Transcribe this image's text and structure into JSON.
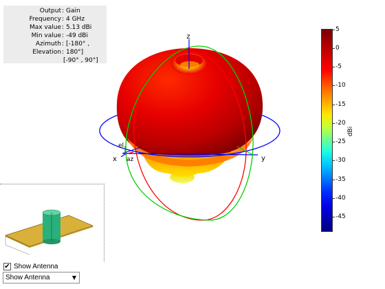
{
  "info": {
    "rows": [
      {
        "label": "Output",
        "value": "Gain"
      },
      {
        "label": "Frequency",
        "value": "4 GHz"
      },
      {
        "label": "Max value",
        "value": "5.13 dBi"
      },
      {
        "label": "Min value",
        "value": "-49 dBi"
      },
      {
        "label": "Azimuth",
        "value": "[-180° ,"
      },
      {
        "label": "Elevation",
        "value": "180°]"
      }
    ],
    "extra_line": "[-90° , 90°]",
    "separator": ":"
  },
  "axes": {
    "x": "x",
    "y": "y",
    "z": "z",
    "el": "el",
    "az": "az"
  },
  "colorbar": {
    "ticks": [
      "5",
      "0",
      "-5",
      "-10",
      "-15",
      "-20",
      "-25",
      "-30",
      "-35",
      "-40",
      "-45"
    ],
    "unit": "dBi",
    "max": 5.13,
    "min": -49
  },
  "controls": {
    "show_antenna_label": "Show Antenna",
    "show_antenna_checked": true,
    "dropdown_value": "Show Antenna"
  },
  "colors": {
    "azimuth_circle": "#0000ff",
    "elevation_circle_red": "#ff0000",
    "elevation_circle_green": "#00cc00",
    "patch": "#d9b13a",
    "feed": "#2ab07a"
  }
}
